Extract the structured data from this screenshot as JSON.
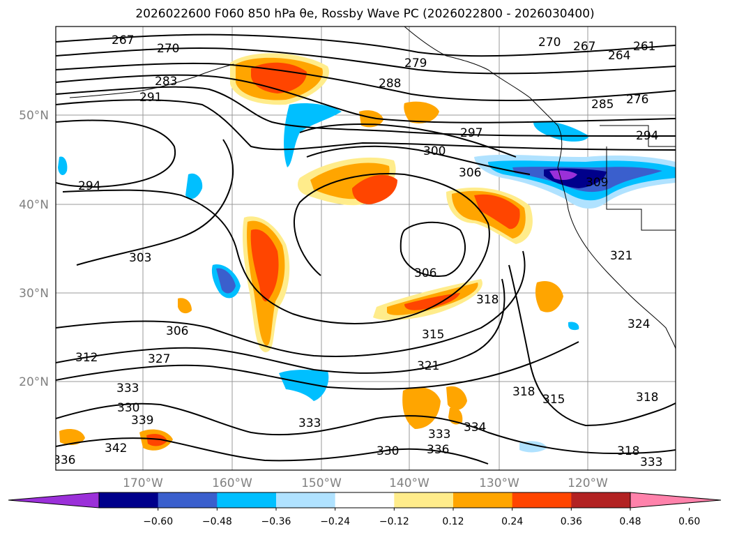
{
  "title": "2026022600 F060 850 hPa θe, Rossby Wave PC (2026022800 - 2026030400)",
  "lon_labels": [
    "170°W",
    "160°W",
    "150°W",
    "140°W",
    "130°W",
    "120°W"
  ],
  "lat_labels": [
    "50°N",
    "40°N",
    "30°N",
    "20°N"
  ],
  "colorbar": {
    "colors": [
      "#9b30d9",
      "#00008b",
      "#3a5fcd",
      "#00bfff",
      "#b0e2ff",
      "#ffffff",
      "#ffec8b",
      "#ffa500",
      "#ff4500",
      "#b22222",
      "#ff82ab"
    ],
    "tick_labels": [
      "−0.60",
      "−0.48",
      "−0.36",
      "−0.24",
      "−0.12",
      "0.12",
      "0.24",
      "0.36",
      "0.48",
      "0.60"
    ]
  },
  "contour_labels": [
    "267",
    "270",
    "283",
    "291",
    "279",
    "288",
    "270",
    "267",
    "264",
    "261",
    "276",
    "285",
    "294",
    "297",
    "300",
    "306",
    "309",
    "294",
    "303",
    "306",
    "306",
    "318",
    "315",
    "321",
    "321",
    "312",
    "327",
    "333",
    "330",
    "339",
    "342",
    "336",
    "333",
    "333",
    "334",
    "330",
    "336",
    "318",
    "315",
    "318",
    "318",
    "333",
    "324"
  ],
  "chart_data": {
    "type": "map",
    "title": "2026022600 F060 850 hPa θe, Rossby Wave PC (2026022800 - 2026030400)",
    "lon_range": [
      -180,
      -110
    ],
    "lat_range": [
      10,
      60
    ],
    "lon_ticks": [
      -170,
      -160,
      -150,
      -140,
      -130,
      -120
    ],
    "lat_ticks": [
      20,
      30,
      40,
      50
    ],
    "grid": true,
    "contour_levels_labeled": [
      261,
      264,
      267,
      270,
      276,
      279,
      283,
      285,
      288,
      291,
      294,
      297,
      300,
      303,
      306,
      309,
      312,
      315,
      318,
      321,
      324,
      327,
      330,
      333,
      336,
      339,
      342
    ],
    "fill_levels": [
      -0.6,
      -0.48,
      -0.36,
      -0.24,
      -0.12,
      0.12,
      0.24,
      0.36,
      0.48,
      0.6
    ]
  }
}
